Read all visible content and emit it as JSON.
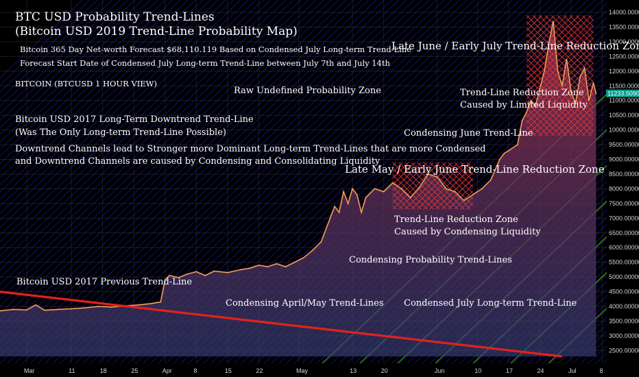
{
  "chart_data": {
    "type": "line",
    "title": "BTC USD Probability Trend-Lines",
    "subtitle": "(Bitcoin USD 2019 Trend-Line Probability Map)",
    "symbol": "BITCOIN (BTCUSD 1 HOUR VIEW)",
    "current_price_label": "11233.50900000",
    "current_price": 11233.509,
    "ylim": [
      2300,
      14000
    ],
    "y_ticks": [
      14000,
      13500,
      13000,
      12500,
      12000,
      11500,
      11000,
      10500,
      10000,
      9500,
      9000,
      8500,
      8000,
      7500,
      7000,
      6500,
      6000,
      5500,
      5000,
      4500,
      4000,
      3500,
      3000,
      2500
    ],
    "y_tick_labels": [
      "14000.00000000",
      "13500.00000000",
      "13000.00000000",
      "12500.00000000",
      "12000.00000000",
      "11500.00000000",
      "11000.00000000",
      "10500.00000000",
      "10000.00000000",
      "9500.00000000",
      "9000.00000000",
      "8500.00000000",
      "8000.00000000",
      "7500.00000000",
      "7000.00000000",
      "6500.00000000",
      "6000.00000000",
      "5500.00000000",
      "5000.00000000",
      "4500.00000000",
      "4000.00000000",
      "3500.00000000",
      "3000.00000000",
      "2500.00000000"
    ],
    "x_ticks": [
      {
        "label": "Mar",
        "day": 0
      },
      {
        "label": "11",
        "day": 10
      },
      {
        "label": "18",
        "day": 17
      },
      {
        "label": "25",
        "day": 24
      },
      {
        "label": "Apr",
        "day": 31
      },
      {
        "label": "8",
        "day": 38
      },
      {
        "label": "15",
        "day": 45
      },
      {
        "label": "22",
        "day": 52
      },
      {
        "label": "May",
        "day": 61
      },
      {
        "label": "13",
        "day": 73
      },
      {
        "label": "20",
        "day": 80
      },
      {
        "label": "Jun",
        "day": 92
      },
      {
        "label": "10",
        "day": 101
      },
      {
        "label": "17",
        "day": 108
      },
      {
        "label": "24",
        "day": 115
      },
      {
        "label": "Jul",
        "day": 122
      },
      {
        "label": "8",
        "day": 129
      }
    ],
    "xlim": [
      -6,
      130
    ],
    "series": [
      {
        "name": "BTCUSD",
        "color": "#e2c275",
        "points": [
          [
            -6,
            3850
          ],
          [
            -3,
            3900
          ],
          [
            0,
            3880
          ],
          [
            2,
            4050
          ],
          [
            4,
            3870
          ],
          [
            7,
            3900
          ],
          [
            10,
            3920
          ],
          [
            13,
            3950
          ],
          [
            16,
            4000
          ],
          [
            19,
            3980
          ],
          [
            22,
            4020
          ],
          [
            25,
            4050
          ],
          [
            28,
            4100
          ],
          [
            30,
            4150
          ],
          [
            31,
            4900
          ],
          [
            32,
            5050
          ],
          [
            34,
            4980
          ],
          [
            36,
            5100
          ],
          [
            38,
            5180
          ],
          [
            40,
            5050
          ],
          [
            42,
            5200
          ],
          [
            45,
            5150
          ],
          [
            48,
            5250
          ],
          [
            50,
            5300
          ],
          [
            52,
            5400
          ],
          [
            54,
            5350
          ],
          [
            56,
            5450
          ],
          [
            58,
            5350
          ],
          [
            60,
            5500
          ],
          [
            62,
            5650
          ],
          [
            64,
            5900
          ],
          [
            66,
            6200
          ],
          [
            68,
            7000
          ],
          [
            69,
            7400
          ],
          [
            70,
            7200
          ],
          [
            71,
            7900
          ],
          [
            72,
            7500
          ],
          [
            73,
            8000
          ],
          [
            74,
            7800
          ],
          [
            75,
            7200
          ],
          [
            76,
            7700
          ],
          [
            78,
            8000
          ],
          [
            80,
            7900
          ],
          [
            82,
            8200
          ],
          [
            84,
            8000
          ],
          [
            86,
            7700
          ],
          [
            88,
            8050
          ],
          [
            90,
            8500
          ],
          [
            92,
            8400
          ],
          [
            94,
            8000
          ],
          [
            96,
            7900
          ],
          [
            98,
            7600
          ],
          [
            100,
            7800
          ],
          [
            102,
            8000
          ],
          [
            104,
            8300
          ],
          [
            106,
            9000
          ],
          [
            107,
            9200
          ],
          [
            108,
            9300
          ],
          [
            110,
            9500
          ],
          [
            111,
            10300
          ],
          [
            112,
            10600
          ],
          [
            113,
            11000
          ],
          [
            114,
            10800
          ],
          [
            115,
            11400
          ],
          [
            116,
            12000
          ],
          [
            117,
            12900
          ],
          [
            118,
            13700
          ],
          [
            119,
            12000
          ],
          [
            120,
            11500
          ],
          [
            121,
            12400
          ],
          [
            122,
            11300
          ],
          [
            123,
            10900
          ],
          [
            124,
            11800
          ],
          [
            125,
            12100
          ],
          [
            126,
            11000
          ],
          [
            127,
            11600
          ],
          [
            127.6,
            11233
          ]
        ]
      },
      {
        "name": "Bitcoin USD 2017 Long-Term Downtrend Trend-Line",
        "color": "#e3221c",
        "points": [
          [
            -6,
            4500
          ],
          [
            120,
            2300
          ]
        ]
      }
    ],
    "annotations": {
      "forecast": "Bitcoin 365 Day Net-worth Forecast $68,110.119 Based on Condensed July Long-term Trend-Line",
      "forecast_start": "Forecast Start Date of Condensed July Long-term Trend-Line between July 7th and July 14th",
      "raw_zone": "Raw Undefined Probability Zone",
      "downtrend_title": "Bitcoin USD 2017 Long-Term Downtrend Trend-Line",
      "downtrend_note": "(Was The Only Long-term Trend-Line Possible)",
      "channels_line1": "Downtrend Channels lead to Stronger more Dominant Long-term Trend-Lines that are more Condensed",
      "channels_line2": "and Downtrend Channels are caused by Condensing and Consolidating Liquidity",
      "late_june_zone": "Late June / Early July Trend-Line Reduction Zone",
      "reduction_zone_1": "Trend-Line Reduction Zone",
      "reduction_zone_1_cause": "Caused by Limited Liquidity",
      "condensing_june": "Condensing June Trend-Line",
      "late_may_zone": "Late May / Early June Trend-Line Reduction Zone",
      "reduction_zone_2": "Trend-Line Reduction Zone",
      "reduction_zone_2_cause": "Caused by Condensing Liquidity",
      "condensing_probability": "Condensing Probability Trend-Lines",
      "previous_trendline": "Bitcoin USD 2017 Previous Trend-Line",
      "condensing_april_may": "Condensing April/May Trend-Lines",
      "condensed_july": "Condensed July Long-term Trend-Line"
    },
    "colors": {
      "background": "#000000",
      "price_line": "#e2c275",
      "area_fill_top": "#8b2a3a",
      "area_fill_bottom": "#3a3a6e",
      "downtrend_line": "#e3221c",
      "probability_lines": "#2222cc",
      "green_lines": "#4caf1e",
      "reduction_zone": "#e83a3a",
      "badge": "#0a9a8a"
    },
    "grid": true
  }
}
